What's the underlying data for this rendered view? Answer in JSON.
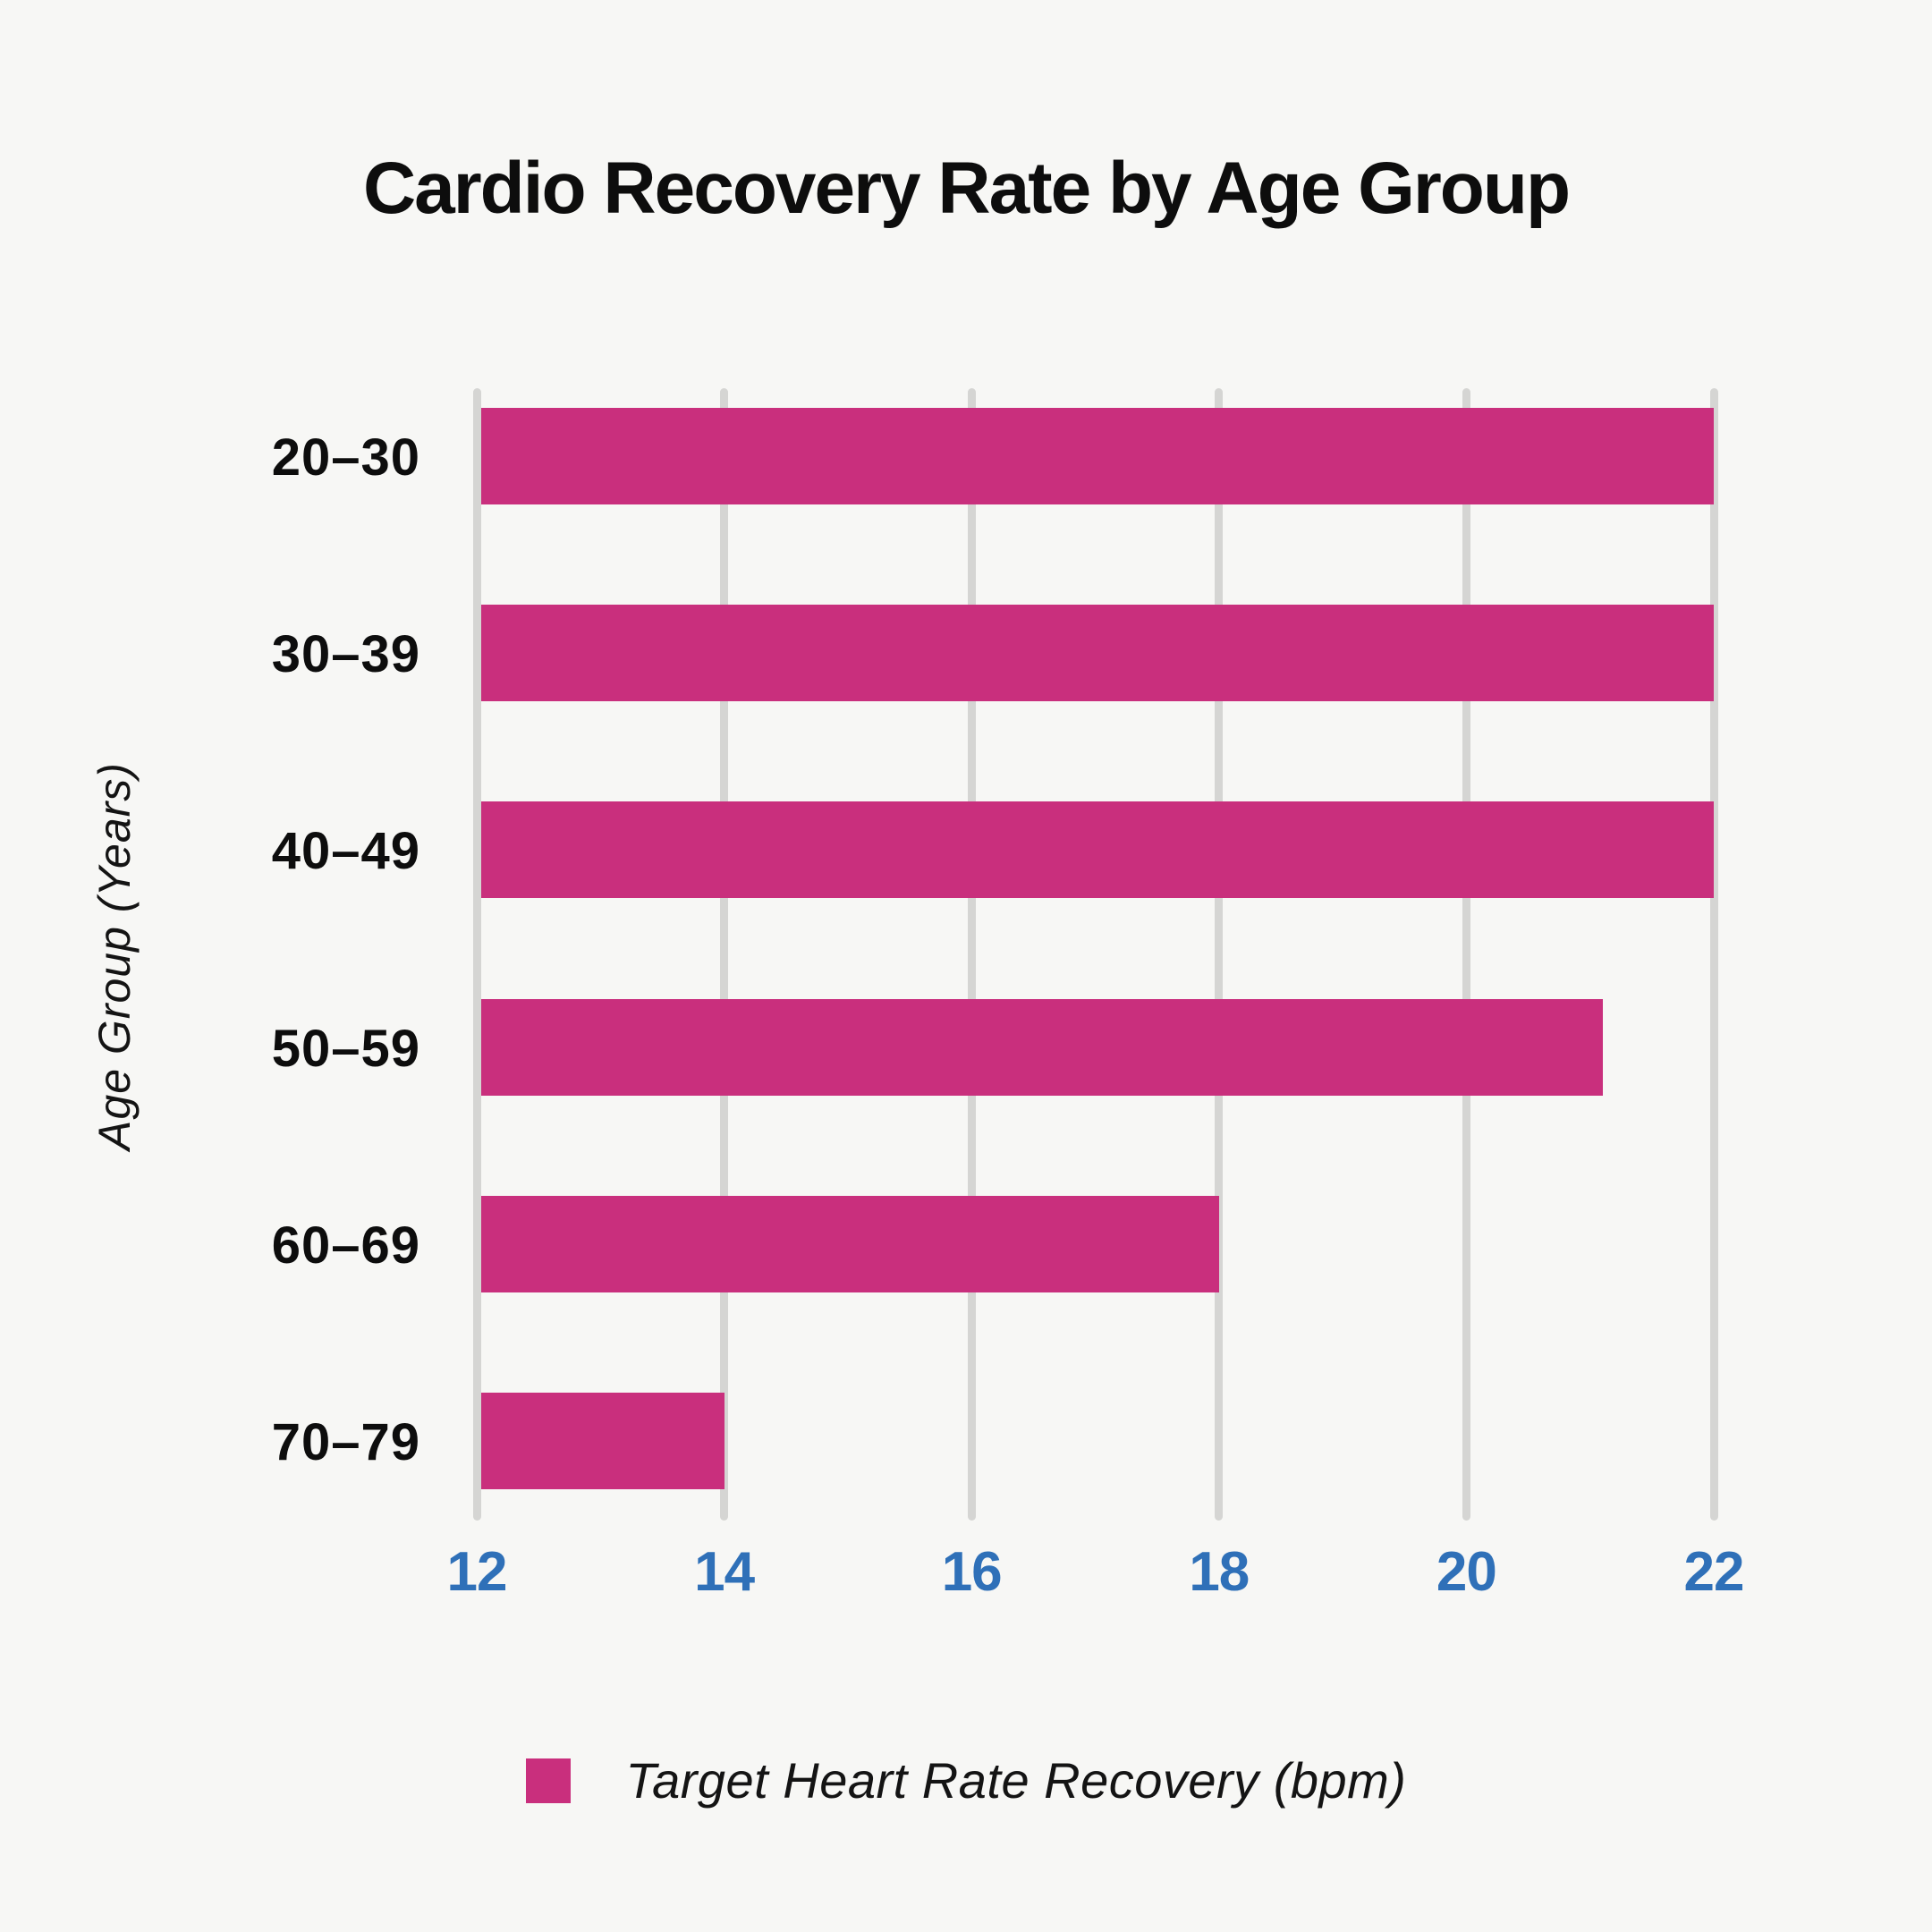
{
  "chart_data": {
    "type": "bar",
    "orientation": "horizontal",
    "title": "Cardio Recovery Rate by Age Group",
    "xlabel": "",
    "ylabel": "Age Group (Years)",
    "categories": [
      "20–30",
      "30–39",
      "40–49",
      "50–59",
      "60–69",
      "70–79"
    ],
    "series": [
      {
        "name": "Target Heart Rate Recovery (bpm)",
        "values": [
          22,
          22,
          22,
          21.1,
          18,
          14
        ]
      }
    ],
    "xlim": [
      12,
      22
    ],
    "x_ticks": [
      12,
      14,
      16,
      18,
      20,
      22
    ],
    "x_tick_labels": [
      "12",
      "14",
      "16",
      "18",
      "20",
      "22"
    ],
    "grid": "vertical-only",
    "legend_position": "bottom",
    "colors": {
      "bar": "#c92f7d",
      "tick_label_blue": "#2f70b8",
      "gridline": "#d5d5d3",
      "background": "#f7f7f5",
      "text": "#0d0d0d"
    }
  },
  "legend": {
    "label": "Target Heart Rate Recovery (bpm)"
  }
}
